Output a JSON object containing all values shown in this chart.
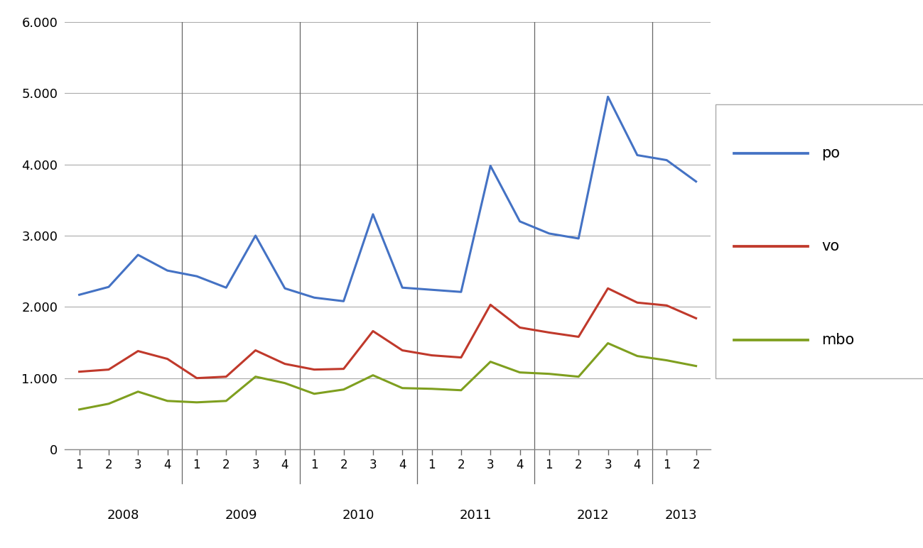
{
  "po": [
    2170,
    2280,
    2730,
    2510,
    2430,
    2270,
    3000,
    2260,
    2130,
    2080,
    3300,
    2270,
    2240,
    2210,
    3980,
    3200,
    3030,
    2960,
    4950,
    4130,
    4060,
    3760
  ],
  "vo": [
    1090,
    1120,
    1380,
    1270,
    1000,
    1020,
    1390,
    1200,
    1120,
    1130,
    1660,
    1390,
    1320,
    1290,
    2030,
    1710,
    1640,
    1580,
    2260,
    2060,
    2020,
    1840
  ],
  "mbo": [
    560,
    640,
    810,
    680,
    660,
    680,
    1020,
    930,
    780,
    840,
    1040,
    860,
    850,
    830,
    1230,
    1080,
    1060,
    1020,
    1490,
    1310,
    1250,
    1170
  ],
  "x_quarter_labels": [
    "1",
    "2",
    "3",
    "4",
    "1",
    "2",
    "3",
    "4",
    "1",
    "2",
    "3",
    "4",
    "1",
    "2",
    "3",
    "4",
    "1",
    "2",
    "3",
    "4",
    "1",
    "2"
  ],
  "x_year_labels": [
    "2008",
    "2009",
    "2010",
    "2011",
    "2012",
    "2013"
  ],
  "x_year_centers": [
    2.5,
    6.5,
    10.5,
    14.5,
    18.5,
    21.5
  ],
  "year_dividers": [
    4.5,
    8.5,
    12.5,
    16.5,
    20.5
  ],
  "ylim": [
    0,
    6000
  ],
  "yticks": [
    0,
    1000,
    2000,
    3000,
    4000,
    5000,
    6000
  ],
  "ytick_labels": [
    "0",
    "1.000",
    "2.000",
    "3.000",
    "4.000",
    "5.000",
    "6.000"
  ],
  "colors": {
    "po": "#4472c4",
    "vo": "#c0392b",
    "mbo": "#7f9f1f"
  },
  "legend_labels": [
    "po",
    "vo",
    "mbo"
  ],
  "background_color": "#ffffff",
  "grid_color": "#aaaaaa",
  "line_width": 2.2
}
